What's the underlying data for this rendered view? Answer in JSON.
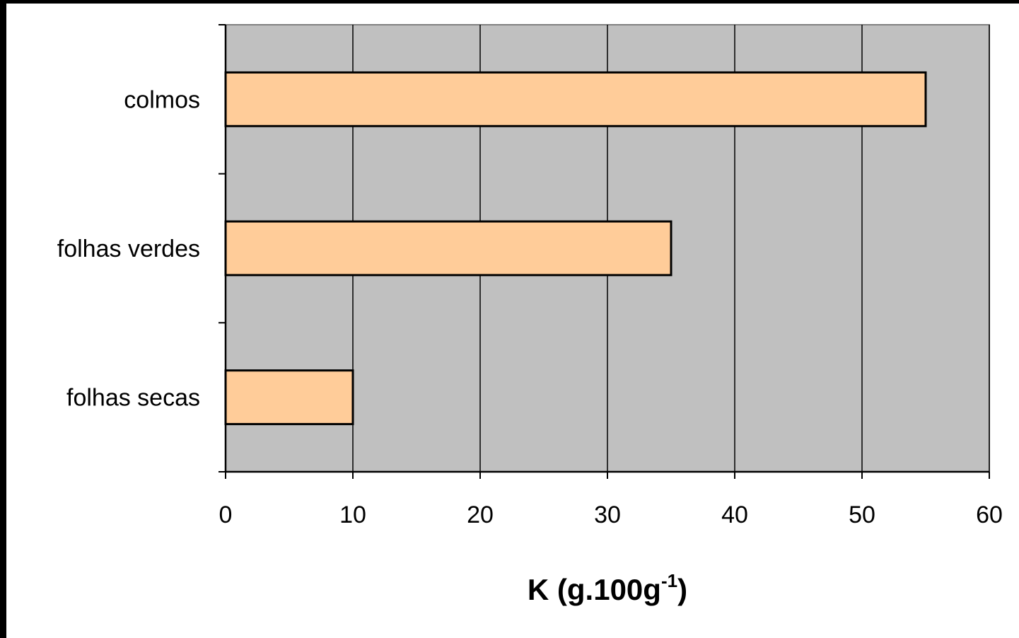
{
  "chart_data": {
    "type": "bar",
    "orientation": "horizontal",
    "categories": [
      "colmos",
      "folhas verdes",
      "folhas secas"
    ],
    "values": [
      55,
      35,
      10
    ],
    "xlabel": "K (g.100g",
    "xlabel_superscript": "-1",
    "xlabel_suffix": ")",
    "xlim": [
      0,
      60
    ],
    "xticks": [
      0,
      10,
      20,
      30,
      40,
      50,
      60
    ],
    "grid": "vertical",
    "legend": "none"
  },
  "colors": {
    "bar_fill": "#FFCC99",
    "bar_stroke": "#000000",
    "plot_background": "#C0C0C0",
    "page_background": "#FFFFFF",
    "outer_frame": "#000000",
    "gridline": "#000000"
  }
}
